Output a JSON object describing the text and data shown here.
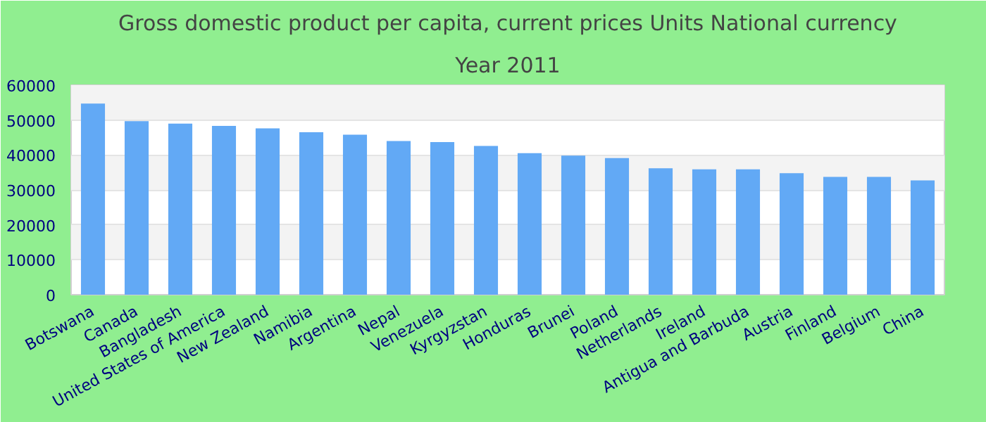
{
  "chart_data": {
    "type": "bar",
    "title": "Gross domestic product per capita, current prices Units National currency",
    "subtitle": "Year 2011",
    "categories": [
      "Botswana",
      "Canada",
      "Bangladesh",
      "United States of America",
      "New Zealand",
      "Namibia",
      "Argentina",
      "Nepal",
      "Venezuela",
      "Kyrgyzstan",
      "Honduras",
      "Brunei",
      "Poland",
      "Netherlands",
      "Ireland",
      "Antigua and Barbuda",
      "Austria",
      "Finland",
      "Belgium",
      "China"
    ],
    "values": [
      54700,
      49700,
      49000,
      48300,
      47600,
      46500,
      45800,
      44000,
      43700,
      42600,
      40500,
      39800,
      39100,
      36200,
      35900,
      35900,
      34800,
      33700,
      33700,
      32700
    ],
    "color": "#62a9f5",
    "ylim": [
      0,
      60000
    ],
    "yticks": [
      0,
      10000,
      20000,
      30000,
      40000,
      50000,
      60000
    ],
    "grid": "y"
  }
}
